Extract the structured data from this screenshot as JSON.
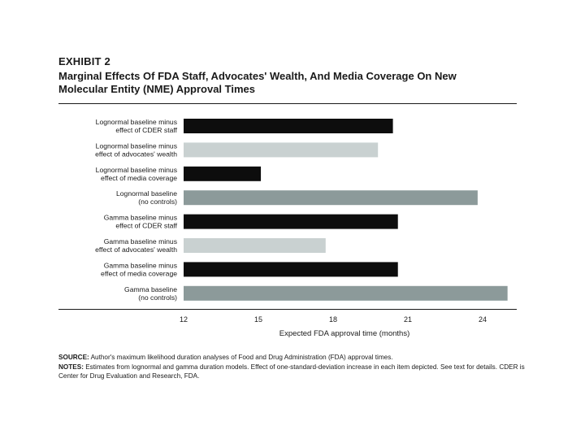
{
  "header": {
    "exhibit": "EXHIBIT 2",
    "title_line1": "Marginal Effects Of FDA Staff, Advocates' Wealth, And Media Coverage On New",
    "title_line2": "Molecular Entity (NME) Approval Times"
  },
  "chart_data": {
    "type": "bar",
    "orientation": "horizontal",
    "title": "",
    "xlabel": "Expected FDA approval time (months)",
    "ylabel": "",
    "xlim": [
      12,
      25.5
    ],
    "xticks": [
      12,
      15,
      18,
      21,
      24
    ],
    "categories": [
      [
        "Lognormal baseline minus",
        "effect of CDER staff"
      ],
      [
        "Lognormal baseline minus",
        "effect of advocates' wealth"
      ],
      [
        "Lognormal baseline minus",
        "effect of media coverage"
      ],
      [
        "Lognormal baseline",
        "(no controls)"
      ],
      [
        "Gamma baseline minus",
        "effect of CDER staff"
      ],
      [
        "Gamma baseline minus",
        "effect of advocates' wealth"
      ],
      [
        "Gamma baseline minus",
        "effect of media coverage"
      ],
      [
        "Gamma baseline",
        "(no controls)"
      ]
    ],
    "values": [
      20.4,
      19.8,
      15.1,
      23.8,
      20.6,
      17.7,
      20.6,
      25.0
    ],
    "colors": [
      "#0d0d0d",
      "#c9d1d1",
      "#0d0d0d",
      "#8c9a9a",
      "#0d0d0d",
      "#c9d1d1",
      "#0d0d0d",
      "#8c9a9a"
    ]
  },
  "notes": {
    "source_label": "SOURCE:",
    "source_text": " Author's maximum likelihood duration analyses of Food and Drug Administration (FDA) approval times.",
    "notes_label": "NOTES:",
    "notes_text": " Estimates from lognormal and gamma duration models. Effect of one-standard-deviation increase in each item depicted. See text for details. CDER is Center for Drug Evaluation and Research, FDA."
  }
}
